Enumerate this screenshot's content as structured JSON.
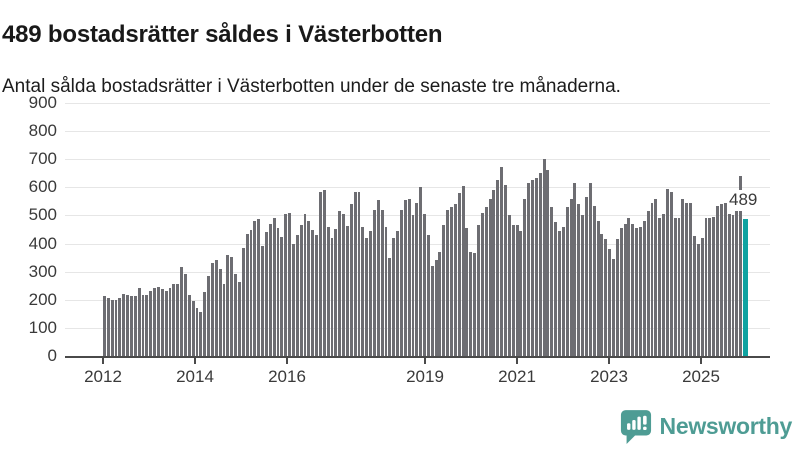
{
  "header": {
    "title": "489 bostadsrätter såldes i Västerbotten",
    "subtitle": "Antal sålda bostadsrätter i Västerbotten under de senaste tre månaderna."
  },
  "chart_data": {
    "type": "bar",
    "title": "489 bostadsrätter såldes i Västerbotten",
    "subtitle": "Antal sålda bostadsrätter i Västerbotten under de senaste tre månaderna.",
    "x_frequency": "monthly",
    "x_start": "2012-01",
    "x_end": "2025-11",
    "xlabel": "",
    "ylabel": "",
    "ylim": [
      0,
      900
    ],
    "grid": "horizontal",
    "legend": "none",
    "y_ticks": [
      0,
      100,
      200,
      300,
      400,
      500,
      600,
      700,
      800,
      900
    ],
    "x_tick_years": [
      2012,
      2014,
      2016,
      2019,
      2021,
      2023,
      2025
    ],
    "values": [
      212,
      206,
      201,
      200,
      207,
      220,
      217,
      213,
      214,
      243,
      216,
      218,
      230,
      243,
      246,
      239,
      231,
      242,
      255,
      257,
      315,
      292,
      217,
      197,
      172,
      158,
      228,
      284,
      330,
      340,
      310,
      257,
      358,
      354,
      293,
      262,
      386,
      433,
      448,
      480,
      487,
      393,
      440,
      468,
      490,
      455,
      425,
      505,
      510,
      400,
      432,
      465,
      505,
      480,
      450,
      430,
      585,
      590,
      460,
      420,
      452,
      517,
      505,
      463,
      540,
      585,
      583,
      460,
      420,
      445,
      520,
      555,
      520,
      460,
      350,
      420,
      445,
      520,
      555,
      560,
      500,
      545,
      600,
      505,
      430,
      320,
      340,
      370,
      465,
      520,
      530,
      540,
      580,
      605,
      454,
      370,
      368,
      465,
      510,
      530,
      560,
      590,
      627,
      673,
      610,
      500,
      465,
      467,
      445,
      560,
      615,
      625,
      633,
      650,
      700,
      660,
      530,
      475,
      445,
      460,
      530,
      560,
      617,
      541,
      502,
      565,
      614,
      535,
      480,
      434,
      415,
      380,
      345,
      416,
      455,
      470,
      490,
      470,
      455,
      460,
      480,
      517,
      545,
      560,
      490,
      505,
      594,
      582,
      491,
      490,
      558,
      546,
      545,
      428,
      400,
      420,
      490,
      492,
      493,
      535,
      540,
      543,
      505,
      500,
      540,
      640,
      489
    ],
    "highlight": {
      "index": 166,
      "value": 489,
      "label": "489"
    },
    "bar_color": "#6d6d72",
    "highlight_color": "#0fa3a1"
  },
  "branding": {
    "logo_text": "Newsworthy",
    "logo_color": "#4e9c94",
    "logo_icon": "newsworthy-speech-bubble-chart-icon"
  }
}
